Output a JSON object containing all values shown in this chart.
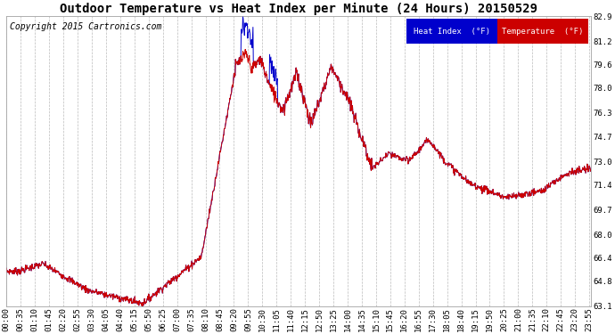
{
  "title": "Outdoor Temperature vs Heat Index per Minute (24 Hours) 20150529",
  "copyright": "Copyright 2015 Cartronics.com",
  "y_ticks": [
    63.1,
    64.8,
    66.4,
    68.0,
    69.7,
    71.4,
    73.0,
    74.7,
    76.3,
    78.0,
    79.6,
    81.2,
    82.9
  ],
  "ylim": [
    63.1,
    82.9
  ],
  "x_tick_labels": [
    "00:00",
    "00:35",
    "01:10",
    "01:45",
    "02:20",
    "02:55",
    "03:30",
    "04:05",
    "04:40",
    "05:15",
    "05:50",
    "06:25",
    "07:00",
    "07:35",
    "08:10",
    "08:45",
    "09:20",
    "09:55",
    "10:30",
    "11:05",
    "11:40",
    "12:15",
    "12:50",
    "13:25",
    "14:00",
    "14:35",
    "15:10",
    "15:45",
    "16:20",
    "16:55",
    "17:30",
    "18:05",
    "18:40",
    "19:15",
    "19:50",
    "20:25",
    "21:00",
    "21:35",
    "22:10",
    "22:45",
    "23:20",
    "23:55"
  ],
  "temp_color": "#cc0000",
  "heat_index_color": "#0000cc",
  "background_color": "#ffffff",
  "grid_color": "#bbbbbb",
  "title_fontsize": 10,
  "copyright_fontsize": 7,
  "tick_fontsize": 6.5,
  "legend_heat_index_bg": "#0000cc",
  "legend_temp_bg": "#cc0000",
  "legend_text_color": "#ffffff",
  "legend_fontsize": 6.5
}
